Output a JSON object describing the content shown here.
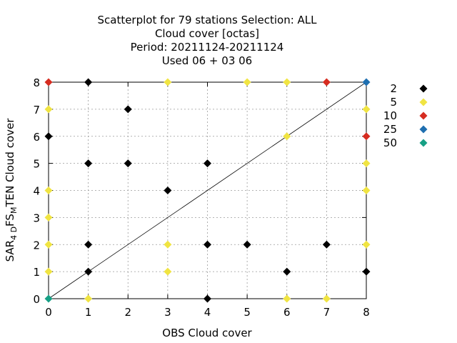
{
  "chart_data": {
    "type": "scatter",
    "title_lines": [
      "Scatterplot for   79 stations Selection: ALL",
      "Cloud cover [octas]",
      "Period: 20211124-20211124",
      "Used  06 + 03 06"
    ],
    "xlabel": "OBS Cloud cover",
    "ylabel_parts": {
      "prefix": "SAR",
      "sub1": "4 D",
      "mid": "FS",
      "sub2": "M",
      "suffix": "TEN Cloud cover"
    },
    "xlim": [
      0,
      8
    ],
    "ylim": [
      0,
      8
    ],
    "x_ticks": [
      "0",
      "1",
      "2",
      "3",
      "4",
      "5",
      "6",
      "7",
      "8"
    ],
    "y_ticks": [
      "0",
      "1",
      "2",
      "3",
      "4",
      "5",
      "6",
      "7",
      "8"
    ],
    "grid": true,
    "diagonal": true,
    "legend_placement": "right",
    "series": [
      {
        "name": "2",
        "color": "#000000",
        "points": [
          [
            0,
            6
          ],
          [
            1,
            1
          ],
          [
            1,
            2
          ],
          [
            1,
            5
          ],
          [
            1,
            8
          ],
          [
            2,
            5
          ],
          [
            2,
            7
          ],
          [
            3,
            4
          ],
          [
            4,
            0
          ],
          [
            4,
            2
          ],
          [
            4,
            5
          ],
          [
            5,
            2
          ],
          [
            6,
            1
          ],
          [
            7,
            2
          ],
          [
            8,
            1
          ]
        ]
      },
      {
        "name": "5",
        "color": "#f0e442",
        "points": [
          [
            0,
            1
          ],
          [
            0,
            2
          ],
          [
            0,
            3
          ],
          [
            0,
            4
          ],
          [
            0,
            7
          ],
          [
            1,
            0
          ],
          [
            3,
            1
          ],
          [
            3,
            2
          ],
          [
            3,
            8
          ],
          [
            5,
            8
          ],
          [
            6,
            0
          ],
          [
            6,
            6
          ],
          [
            6,
            8
          ],
          [
            7,
            0
          ],
          [
            8,
            2
          ],
          [
            8,
            4
          ],
          [
            8,
            5
          ],
          [
            8,
            7
          ]
        ]
      },
      {
        "name": "10",
        "color": "#d62c20",
        "points": [
          [
            0,
            8
          ],
          [
            7,
            8
          ],
          [
            8,
            6
          ]
        ]
      },
      {
        "name": "25",
        "color": "#1f6fb0",
        "points": [
          [
            8,
            8
          ]
        ]
      },
      {
        "name": "50",
        "color": "#16a085",
        "points": [
          [
            0,
            0
          ]
        ]
      }
    ]
  }
}
